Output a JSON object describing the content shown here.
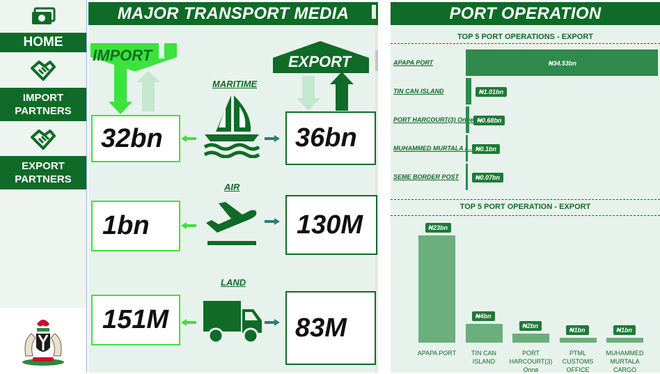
{
  "sidebar": {
    "home_label": "HOME",
    "import_partners_label": [
      "IMPORT",
      "PARTNERS"
    ],
    "export_partners_label": [
      "EXPORT",
      "PARTNERS"
    ]
  },
  "transport": {
    "title": "MAJOR TRANSPORT MEDIA",
    "import_label": "IMPORT",
    "export_label": "EXPORT",
    "modes": [
      {
        "name": "MARITIME",
        "import_value": "32bn",
        "export_value": "36bn"
      },
      {
        "name": "AIR",
        "import_value": "1bn",
        "export_value": "130M"
      },
      {
        "name": "LAND",
        "import_value": "151M",
        "export_value": "83M"
      }
    ]
  },
  "port": {
    "title": "PORT OPERATION",
    "colors": {
      "primary": "#0f6b27",
      "bar": "#2f8a4c",
      "bar_light": "#6aaf7d",
      "import_green": "#3ce33c"
    }
  },
  "chart_data": [
    {
      "type": "bar",
      "orientation": "horizontal",
      "title": "TOP 5 PORT OPERATIONS - EXPORT",
      "categories": [
        "APAPA PORT",
        "TIN CAN ISLAND",
        "PORT HARCOURT(3) Onne",
        "MUHAMMED MURTALA I...",
        "SEME BORDER POST"
      ],
      "values": [
        34.53,
        1.01,
        0.68,
        0.1,
        0.07
      ],
      "data_labels": [
        "₦34.53bn",
        "₦1.01bn",
        "₦0.68bn",
        "₦0.1bn",
        "₦0.07bn"
      ]
    },
    {
      "type": "bar",
      "orientation": "vertical",
      "title": "TOP 5 PORT OPERATION - EXPORT",
      "categories": [
        "APAPA PORT",
        "TIN CAN ISLAND",
        "PORT HARCOURT(3) Onne",
        "PTML CUSTOMS OFFICE",
        "MUHAMMED MURTALA CARGO"
      ],
      "values": [
        23,
        4,
        2,
        1,
        1
      ],
      "data_labels": [
        "₦23bn",
        "₦4bn",
        "₦2bn",
        "₦1bn",
        "₦1bn"
      ]
    }
  ]
}
